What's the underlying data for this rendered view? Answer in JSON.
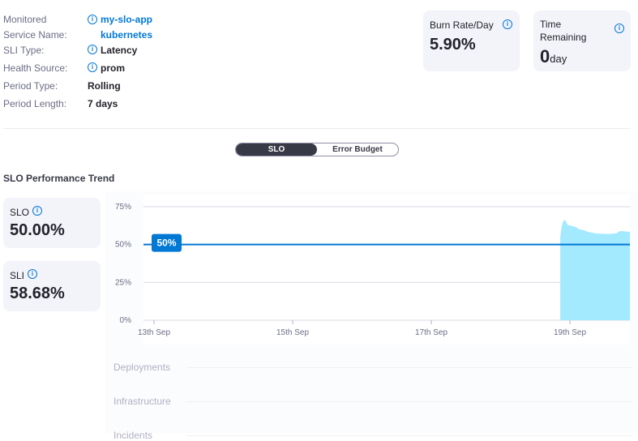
{
  "details": {
    "monitored_service": {
      "label_1": "Monitored",
      "label_2": "Service Name:",
      "value_1": "my-slo-app",
      "value_2": "kubernetes"
    },
    "sli_type": {
      "label": "SLI Type:",
      "value": "Latency"
    },
    "health_source": {
      "label": "Health Source:",
      "value": "prom"
    },
    "period_type": {
      "label": "Period Type:",
      "value": "Rolling"
    },
    "period_length": {
      "label": "Period Length:",
      "value": "7 days"
    }
  },
  "burn_rate": {
    "title": "Burn Rate/Day",
    "value": "5.90%"
  },
  "time_remaining": {
    "title_1": "Time",
    "title_2": "Remaining",
    "value": "0",
    "unit": "day"
  },
  "toggle": {
    "options": [
      "SLO",
      "Error Budget"
    ],
    "selected": "SLO"
  },
  "trend": {
    "title": "SLO Performance Trend",
    "slo_label": "SLO",
    "slo_value": "50.00%",
    "sli_label": "SLI",
    "sli_value": "58.68%"
  },
  "tracks": [
    "Deployments",
    "Infrastructure",
    "Incidents"
  ],
  "colors": {
    "accent": "#0278d5",
    "area": "#a3e9ff",
    "dark": "#383946"
  },
  "chart_data": {
    "type": "area",
    "yticks": [
      "0%",
      "25%",
      "50%",
      "75%"
    ],
    "ylim": [
      0,
      75
    ],
    "xticks": [
      "13th Sep",
      "15th Sep",
      "17th Sep",
      "19th Sep"
    ],
    "threshold": {
      "value": 50,
      "label": "50%"
    },
    "grid": true,
    "series": [
      {
        "points": [
          [
            "Sep 18 20:40",
            55
          ],
          [
            "Sep 18 21:15",
            63
          ],
          [
            "Sep 18 21:50",
            66
          ],
          [
            "Sep 18 22:25",
            66
          ],
          [
            "Sep 18 23:10",
            63
          ],
          [
            "Sep 19 02:00",
            61.6
          ],
          [
            "Sep 19 03:20",
            60
          ],
          [
            "Sep 19 04:45",
            59.5
          ],
          [
            "Sep 19 06:10",
            58.4
          ],
          [
            "Sep 19 09:00",
            57.3
          ],
          [
            "Sep 19 13:10",
            57
          ],
          [
            "Sep 19 16:00",
            57.3
          ],
          [
            "Sep 19 17:25",
            59
          ],
          [
            "Sep 19 20:45",
            58.4
          ]
        ]
      }
    ]
  }
}
